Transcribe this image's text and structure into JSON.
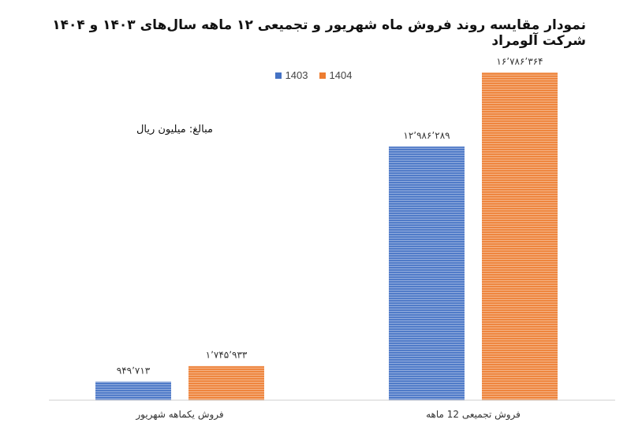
{
  "chart_data": {
    "type": "bar",
    "title": "نمودار مقایسه روند فروش ماه شهریور و تجمیعی ۱۲ ماهه سال‌های ۱۴۰۳ و ۱۴۰۴ شرکت آلومراد",
    "unit_note": "مبالغ: میلیون ریال",
    "categories": [
      "فروش یکماهه شهریور",
      "فروش تجمیعی 12 ماهه"
    ],
    "series": [
      {
        "name": "1403",
        "color": "#4472C4",
        "values": [
          949713,
          12986289
        ],
        "value_labels": [
          "۹۴۹٬۷۱۳",
          "۱۲٬۹۸۶٬۲۸۹"
        ]
      },
      {
        "name": "1404",
        "color": "#ED7D31",
        "values": [
          1745933,
          16786364
        ],
        "value_labels": [
          "۱٬۷۴۵٬۹۳۳",
          "۱۶٬۷۸۶٬۳۶۴"
        ]
      }
    ],
    "xlabel": "",
    "ylabel": "",
    "ylim": [
      0,
      19000000
    ],
    "grid": false,
    "legend_position": "top-center",
    "bar_pattern": "horizontal-stripes"
  }
}
